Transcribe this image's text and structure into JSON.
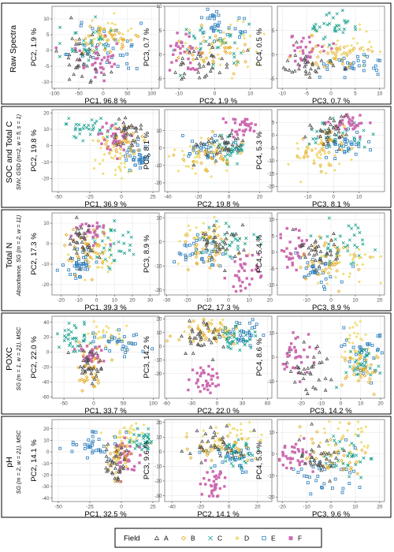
{
  "colors": {
    "A": "#4d4d4d",
    "B": "#e3a81b",
    "C": "#0f9e8a",
    "D": "#efdf78",
    "E": "#2a7dbd",
    "F": "#cc6ab0"
  },
  "legend": {
    "title": "Field",
    "items": [
      {
        "label": "A",
        "shape": "triangle"
      },
      {
        "label": "B",
        "shape": "diamond"
      },
      {
        "label": "C",
        "shape": "cross"
      },
      {
        "label": "D",
        "shape": "diamond-filled"
      },
      {
        "label": "E",
        "shape": "square"
      },
      {
        "label": "F",
        "shape": "square-filled"
      }
    ]
  },
  "chart_data": [
    {
      "row_title": "Raw Spectra",
      "row_subtitle": "",
      "panels": [
        {
          "type": "scatter",
          "xlabel": "PC1, 96.8 %",
          "ylabel": "PC2, 1.9 %",
          "xlim": [
            -105,
            115
          ],
          "ylim": [
            -12,
            14
          ],
          "xticks": [
            -100,
            -50,
            0,
            50,
            100
          ],
          "yticks": [
            -10,
            -5,
            0,
            5,
            10
          ],
          "clusters": {
            "A": [
              -50,
              -3,
              25,
              4
            ],
            "B": [
              5,
              4,
              30,
              3
            ],
            "C": [
              -30,
              3,
              30,
              4
            ],
            "D": [
              10,
              6,
              30,
              3
            ],
            "E": [
              20,
              -1,
              45,
              5
            ],
            "F": [
              -5,
              -4,
              25,
              3
            ]
          }
        },
        {
          "type": "scatter",
          "xlabel": "PC2, 1.9 %",
          "ylabel": "PC3, 0.7 %",
          "xlim": [
            -14,
            16
          ],
          "ylim": [
            -7,
            10
          ],
          "xticks": [
            -10,
            0,
            10
          ],
          "yticks": [
            -5,
            0,
            5,
            10
          ],
          "clusters": {
            "A": [
              -3,
              -2,
              4,
              2
            ],
            "B": [
              0,
              1,
              5,
              2
            ],
            "C": [
              0,
              2,
              5,
              2
            ],
            "D": [
              4,
              2,
              5,
              2.5
            ],
            "E": [
              2,
              6,
              5,
              2
            ],
            "F": [
              -8,
              0,
              3,
              2
            ]
          }
        },
        {
          "type": "scatter",
          "xlabel": "PC3, 0.7 %",
          "ylabel": "PC4, 0.5 %",
          "xlim": [
            -11,
            11
          ],
          "ylim": [
            -7,
            10
          ],
          "xticks": [
            -10,
            -5,
            0,
            5,
            10
          ],
          "yticks": [
            -5,
            0,
            5
          ],
          "clusters": {
            "A": [
              -5,
              -3,
              3,
              2
            ],
            "B": [
              1,
              0,
              4,
              2
            ],
            "C": [
              0,
              6,
              2.5,
              1.5
            ],
            "D": [
              4,
              2,
              4,
              2
            ],
            "E": [
              4,
              -2,
              4,
              2
            ],
            "F": [
              -6,
              1,
              2.5,
              1.5
            ]
          }
        }
      ]
    },
    {
      "row_title": "SOC and Total C",
      "row_subtitle": "SNV, GSD (m=2, w = 5, s = 1)",
      "panels": [
        {
          "type": "scatter",
          "xlabel": "PC1, 36.9 %",
          "ylabel": "PC2, 19.8 %",
          "xlim": [
            -55,
            30
          ],
          "ylim": [
            -28,
            22
          ],
          "xticks": [
            -50,
            -25,
            0,
            25
          ],
          "yticks": [
            -20,
            -10,
            0,
            10,
            20
          ],
          "clusters": {
            "A": [
              5,
              8,
              6,
              5
            ],
            "B": [
              0,
              2,
              8,
              5
            ],
            "C": [
              -25,
              10,
              12,
              4
            ],
            "D": [
              -5,
              -8,
              8,
              8
            ],
            "E": [
              12,
              -5,
              6,
              6
            ],
            "F": [
              -5,
              5,
              6,
              4
            ]
          }
        },
        {
          "type": "scatter",
          "xlabel": "PC2, 19.8 %",
          "ylabel": "PC3, 8.1 %",
          "xlim": [
            -42,
            28
          ],
          "ylim": [
            -25,
            22
          ],
          "xticks": [
            -40,
            -20,
            0,
            20
          ],
          "yticks": [
            -20,
            -10,
            0,
            10
          ],
          "clusters": {
            "A": [
              -5,
              2,
              8,
              4
            ],
            "B": [
              -10,
              -5,
              10,
              5
            ],
            "C": [
              0,
              0,
              8,
              4
            ],
            "D": [
              -20,
              -5,
              10,
              6
            ],
            "E": [
              -15,
              0,
              8,
              3
            ],
            "F": [
              8,
              12,
              5,
              3
            ]
          }
        },
        {
          "type": "scatter",
          "xlabel": "PC3, 8.1 %",
          "ylabel": "PC4, 5.3 %",
          "xlim": [
            -22,
            20
          ],
          "ylim": [
            -22,
            10
          ],
          "xticks": [
            -10,
            0,
            10
          ],
          "yticks": [
            -20,
            -15,
            -10,
            -5,
            0,
            5
          ],
          "clusters": {
            "A": [
              -2,
              2,
              4,
              3
            ],
            "B": [
              -3,
              -3,
              5,
              4
            ],
            "C": [
              0,
              0,
              5,
              3
            ],
            "D": [
              -5,
              -8,
              5,
              5
            ],
            "E": [
              5,
              -3,
              5,
              3
            ],
            "F": [
              5,
              4,
              4,
              2
            ]
          }
        }
      ]
    },
    {
      "row_title": "Total N",
      "row_subtitle": "Absorbance, SG (m = 2, w = 11)",
      "panels": [
        {
          "type": "scatter",
          "xlabel": "PC1, 39.3 %",
          "ylabel": "PC2, 17.3 %",
          "xlim": [
            -25,
            35
          ],
          "ylim": [
            -25,
            15
          ],
          "xticks": [
            -20,
            -10,
            0,
            10,
            20,
            30
          ],
          "yticks": [
            -20,
            -10,
            0,
            10
          ],
          "clusters": {
            "A": [
              -8,
              2,
              4,
              5
            ],
            "B": [
              -5,
              -3,
              5,
              5
            ],
            "C": [
              10,
              0,
              8,
              5
            ],
            "D": [
              0,
              -5,
              6,
              6
            ],
            "E": [
              -10,
              -10,
              4,
              4
            ],
            "F": [
              -2,
              5,
              5,
              3
            ]
          }
        },
        {
          "type": "scatter",
          "xlabel": "PC2, 17.3 %",
          "ylabel": "PC3, 8.9 %",
          "xlim": [
            -31,
            21
          ],
          "ylim": [
            -22,
            12
          ],
          "xticks": [
            -30,
            -20,
            -10,
            0,
            10,
            20
          ],
          "yticks": [
            -20,
            -10,
            0,
            10
          ],
          "clusters": {
            "A": [
              -5,
              0,
              6,
              4
            ],
            "B": [
              -8,
              -3,
              6,
              4
            ],
            "C": [
              0,
              0,
              8,
              4
            ],
            "D": [
              -10,
              2,
              8,
              5
            ],
            "E": [
              -12,
              -5,
              6,
              4
            ],
            "F": [
              8,
              -12,
              4,
              4
            ]
          }
        },
        {
          "type": "scatter",
          "xlabel": "PC3, 8.9 %",
          "ylabel": "PC4, 5.4 %",
          "xlim": [
            -22,
            22
          ],
          "ylim": [
            -13,
            12
          ],
          "xticks": [
            -10,
            0,
            10,
            20
          ],
          "yticks": [
            -10,
            -5,
            0,
            5,
            10
          ],
          "clusters": {
            "A": [
              -5,
              0,
              5,
              3
            ],
            "B": [
              0,
              -2,
              6,
              4
            ],
            "C": [
              5,
              2,
              6,
              3
            ],
            "D": [
              5,
              -3,
              6,
              4
            ],
            "E": [
              -5,
              -5,
              5,
              3
            ],
            "F": [
              -15,
              0,
              4,
              3
            ]
          }
        }
      ]
    },
    {
      "row_title": "POXC",
      "row_subtitle": "SG (m = 1, w = 21), MSC",
      "panels": [
        {
          "type": "scatter",
          "xlabel": "PC1, 33.7 %",
          "ylabel": "PC2, 22.0 %",
          "xlim": [
            -70,
            110
          ],
          "ylim": [
            -62,
            48
          ],
          "xticks": [
            -50,
            0,
            50,
            100
          ],
          "yticks": [
            -60,
            -40,
            -20,
            0,
            20,
            40
          ],
          "clusters": {
            "A": [
              -10,
              -15,
              10,
              12
            ],
            "B": [
              -5,
              -25,
              12,
              15
            ],
            "C": [
              -35,
              20,
              15,
              10
            ],
            "D": [
              20,
              25,
              20,
              10
            ],
            "E": [
              40,
              10,
              25,
              10
            ],
            "F": [
              -5,
              -5,
              10,
              8
            ]
          }
        },
        {
          "type": "scatter",
          "xlabel": "PC2, 22.0 %",
          "ylabel": "PC3, 14.2 %",
          "xlim": [
            -62,
            65
          ],
          "ylim": [
            -38,
            22
          ],
          "xticks": [
            -60,
            -30,
            0,
            30,
            60
          ],
          "yticks": [
            -20,
            -10,
            0,
            10,
            20
          ],
          "clusters": {
            "A": [
              -20,
              5,
              12,
              6
            ],
            "B": [
              -10,
              10,
              15,
              5
            ],
            "C": [
              25,
              5,
              12,
              5
            ],
            "D": [
              0,
              12,
              20,
              5
            ],
            "E": [
              30,
              10,
              12,
              5
            ],
            "F": [
              -15,
              -25,
              8,
              5
            ]
          }
        },
        {
          "type": "scatter",
          "xlabel": "PC3, 14.2 %",
          "ylabel": "PC4, 8.6 %",
          "xlim": [
            -32,
            22
          ],
          "ylim": [
            -17,
            17
          ],
          "xticks": [
            -20,
            -10,
            0,
            10,
            20
          ],
          "yticks": [
            -10,
            0,
            10
          ],
          "clusters": {
            "A": [
              -15,
              -5,
              5,
              4
            ],
            "B": [
              10,
              -5,
              5,
              4
            ],
            "C": [
              12,
              -3,
              6,
              4
            ],
            "D": [
              8,
              5,
              6,
              5
            ],
            "E": [
              10,
              2,
              6,
              5
            ],
            "F": [
              -22,
              0,
              5,
              5
            ]
          }
        }
      ]
    },
    {
      "row_title": "pH",
      "row_subtitle": "SG (m = 2, w = 21), MSC",
      "panels": [
        {
          "type": "scatter",
          "xlabel": "PC1, 32.5 %",
          "ylabel": "PC2, 14.1 %",
          "xlim": [
            -55,
            30
          ],
          "ylim": [
            -43,
            28
          ],
          "xticks": [
            -50,
            -25,
            0,
            25
          ],
          "yticks": [
            -40,
            -30,
            -20,
            -10,
            0,
            10,
            20
          ],
          "clusters": {
            "A": [
              -5,
              -10,
              6,
              10
            ],
            "B": [
              -2,
              -5,
              6,
              8
            ],
            "C": [
              18,
              10,
              5,
              5
            ],
            "D": [
              5,
              15,
              8,
              5
            ],
            "E": [
              -20,
              5,
              12,
              6
            ],
            "F": [
              5,
              -5,
              5,
              8
            ]
          }
        },
        {
          "type": "scatter",
          "xlabel": "PC2, 14.1 %",
          "ylabel": "PC3, 9.6 %",
          "xlim": [
            -45,
            30
          ],
          "ylim": [
            -34,
            22
          ],
          "xticks": [
            -40,
            -20,
            0,
            20
          ],
          "yticks": [
            -30,
            -20,
            -10,
            0,
            10,
            20
          ],
          "clusters": {
            "A": [
              -10,
              5,
              10,
              5
            ],
            "B": [
              -5,
              2,
              10,
              5
            ],
            "C": [
              5,
              0,
              8,
              5
            ],
            "D": [
              0,
              10,
              12,
              5
            ],
            "E": [
              5,
              -5,
              8,
              5
            ],
            "F": [
              -10,
              -20,
              4,
              6
            ]
          }
        },
        {
          "type": "scatter",
          "xlabel": "PC3, 9.6 %",
          "ylabel": "PC4, 5.9 %",
          "xlim": [
            -22,
            22
          ],
          "ylim": [
            -22,
            16
          ],
          "xticks": [
            -20,
            -10,
            0,
            10,
            20
          ],
          "yticks": [
            -20,
            -10,
            0,
            10
          ],
          "clusters": {
            "A": [
              -5,
              -2,
              5,
              5
            ],
            "B": [
              0,
              0,
              6,
              5
            ],
            "C": [
              5,
              0,
              6,
              5
            ],
            "D": [
              8,
              5,
              6,
              5
            ],
            "E": [
              0,
              -8,
              8,
              6
            ],
            "F": [
              -15,
              0,
              4,
              4
            ]
          }
        }
      ]
    }
  ]
}
